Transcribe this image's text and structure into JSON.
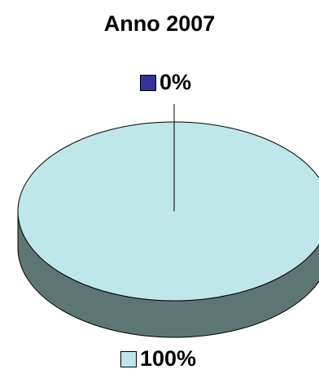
{
  "chart_data": {
    "type": "pie",
    "style": "3d",
    "title": "Anno 2007",
    "slices": [
      {
        "label": "0%",
        "value": 0,
        "color": "#333399"
      },
      {
        "label": "100%",
        "value": 100,
        "color": "#BFE6E8"
      }
    ],
    "side_color": "#5E7673",
    "legend": "none"
  }
}
